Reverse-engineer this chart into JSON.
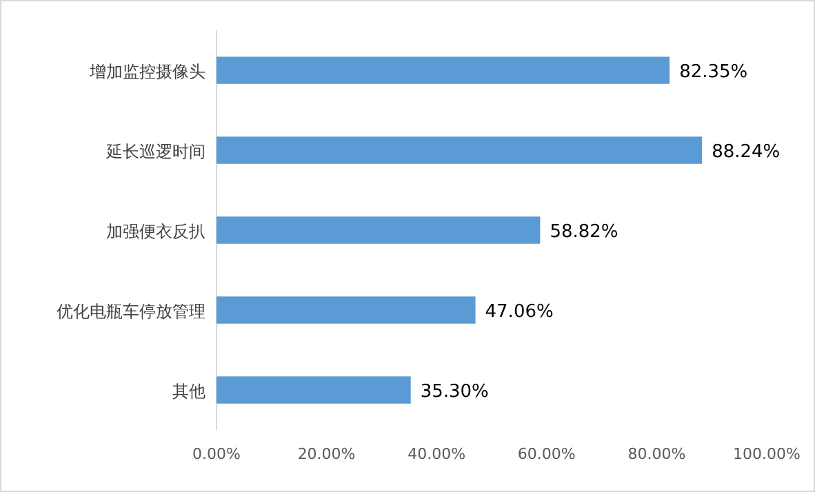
{
  "chart_data": {
    "type": "bar",
    "orientation": "horizontal",
    "categories": [
      "增加监控摄像头",
      "延长巡逻时间",
      "加强便衣反扒",
      "优化电瓶车停放管理",
      "其他"
    ],
    "values": [
      82.35,
      88.24,
      58.82,
      47.06,
      35.3
    ],
    "value_labels": [
      "82.35%",
      "88.24%",
      "58.82%",
      "47.06%",
      "35.30%"
    ],
    "color": "#5b9bd5",
    "xlim": [
      0,
      100
    ],
    "xticks": [
      {
        "value": 0,
        "label": "0.00%"
      },
      {
        "value": 20,
        "label": "20.00%"
      },
      {
        "value": 40,
        "label": "40.00%"
      },
      {
        "value": 60,
        "label": "60.00%"
      },
      {
        "value": 80,
        "label": "80.00%"
      },
      {
        "value": 100,
        "label": "100.00%"
      }
    ],
    "grid": false
  }
}
